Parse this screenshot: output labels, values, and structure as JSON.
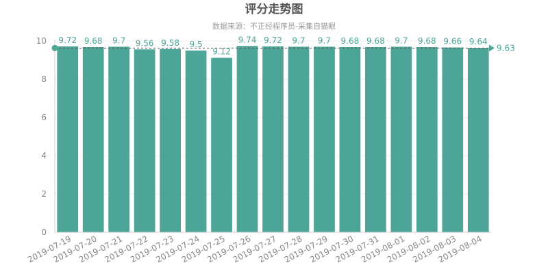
{
  "chart_data": {
    "type": "bar",
    "title": "评分走势图",
    "subtitle": "数据来源：不正经程序员-采集自猫眼",
    "categories": [
      "2019-07-19",
      "2019-07-20",
      "2019-07-21",
      "2019-07-22",
      "2019-07-23",
      "2019-07-24",
      "2019-07-25",
      "2019-07-26",
      "2019-07-27",
      "2019-07-28",
      "2019-07-29",
      "2019-07-30",
      "2019-07-31",
      "2019-08-01",
      "2019-08-02",
      "2019-08-03",
      "2019-08-04"
    ],
    "values": [
      9.72,
      9.68,
      9.7,
      9.56,
      9.58,
      9.5,
      9.12,
      9.74,
      9.72,
      9.7,
      9.7,
      9.68,
      9.68,
      9.7,
      9.68,
      9.66,
      9.64
    ],
    "value_labels": [
      "9.72",
      "9.68",
      "9.7",
      "9.56",
      "9.58",
      "9.5",
      "9.12",
      "9.74",
      "9.72",
      "9.7",
      "9.7",
      "9.68",
      "9.68",
      "9.7",
      "9.68",
      "9.66",
      "9.64"
    ],
    "ylim": [
      0,
      10
    ],
    "yticks": [
      "0",
      "2",
      "4",
      "6",
      "8",
      "10"
    ],
    "average_line": {
      "value": 9.63,
      "label": "9.63"
    },
    "bar_color": "#4ca597",
    "label_color": "#4ca597",
    "grid": true
  }
}
